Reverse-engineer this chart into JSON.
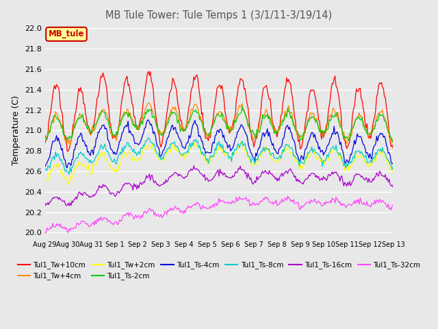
{
  "title": "MB Tule Tower: Tule Temps 1 (3/1/11-3/19/14)",
  "ylabel": "Temperature (C)",
  "ylim": [
    19.95,
    22.05
  ],
  "xlim": [
    0,
    360
  ],
  "background_color": "#e8e8e8",
  "plot_background": "#e8e8e8",
  "grid_color": "#ffffff",
  "xtick_labels": [
    "Aug 29",
    "Aug 30",
    "Aug 31",
    "Sep 1",
    "Sep 2",
    "Sep 3",
    "Sep 4",
    "Sep 5",
    "Sep 6",
    "Sep 7",
    "Sep 8",
    "Sep 9",
    "Sep 10",
    "Sep 11",
    "Sep 12",
    "Sep 13"
  ],
  "xtick_positions": [
    0,
    24,
    48,
    72,
    96,
    120,
    144,
    168,
    192,
    216,
    240,
    264,
    288,
    312,
    336,
    360
  ],
  "series": [
    {
      "name": "Tul1_Tw+10cm",
      "color": "#ff0000",
      "base": 21.1,
      "amp1": 0.28,
      "amp2": 0.07,
      "noise": 0.025,
      "rise_end": 72,
      "rise_amount": 0.15,
      "fall_start": 72,
      "fall_amount": 0.1,
      "period": 24
    },
    {
      "name": "Tul1_Tw+4cm",
      "color": "#ff8800",
      "base": 21.0,
      "amp1": 0.12,
      "amp2": 0.04,
      "noise": 0.02,
      "rise_end": 100,
      "rise_amount": 0.12,
      "fall_start": 100,
      "fall_amount": 0.08,
      "period": 24
    },
    {
      "name": "Tul1_Tw+2cm",
      "color": "#ffff00",
      "base": 20.55,
      "amp1": 0.07,
      "amp2": 0.03,
      "noise": 0.02,
      "rise_end": 120,
      "rise_amount": 0.25,
      "fall_start": 120,
      "fall_amount": 0.1,
      "period": 24
    },
    {
      "name": "Tul1_Ts-2cm",
      "color": "#00cc00",
      "base": 21.0,
      "amp1": 0.1,
      "amp2": 0.03,
      "noise": 0.018,
      "rise_end": 80,
      "rise_amount": 0.1,
      "fall_start": 80,
      "fall_amount": 0.07,
      "period": 24
    },
    {
      "name": "Tul1_Ts-4cm",
      "color": "#0000dd",
      "base": 20.75,
      "amp1": 0.12,
      "amp2": 0.04,
      "noise": 0.018,
      "rise_end": 80,
      "rise_amount": 0.2,
      "fall_start": 80,
      "fall_amount": 0.12,
      "period": 24
    },
    {
      "name": "Tul1_Ts-8cm",
      "color": "#00cccc",
      "base": 20.65,
      "amp1": 0.07,
      "amp2": 0.025,
      "noise": 0.018,
      "rise_end": 100,
      "rise_amount": 0.18,
      "fall_start": 100,
      "fall_amount": 0.1,
      "period": 24
    },
    {
      "name": "Tul1_Ts-16cm",
      "color": "#aa00cc",
      "base": 20.28,
      "amp1": 0.04,
      "amp2": 0.02,
      "noise": 0.015,
      "rise_end": 150,
      "rise_amount": 0.3,
      "fall_start": 150,
      "fall_amount": 0.06,
      "period": 24
    },
    {
      "name": "Tul1_Ts-32cm",
      "color": "#ff44ff",
      "base": 20.03,
      "amp1": 0.025,
      "amp2": 0.01,
      "noise": 0.015,
      "rise_end": 200,
      "rise_amount": 0.28,
      "fall_start": 200,
      "fall_amount": 0.03,
      "period": 24
    }
  ],
  "legend_box": {
    "label": "MB_tule",
    "facecolor": "#ffff99",
    "edgecolor": "#cc0000",
    "textcolor": "#cc0000"
  },
  "yticks": [
    20.0,
    20.2,
    20.4,
    20.6,
    20.8,
    21.0,
    21.2,
    21.4,
    21.6,
    21.8,
    22.0
  ]
}
